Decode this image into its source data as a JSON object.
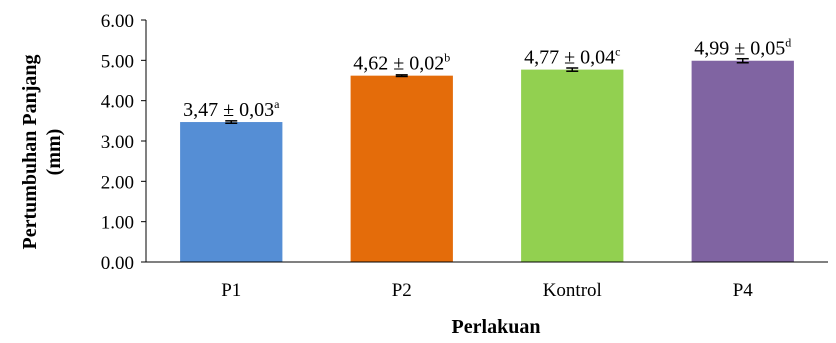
{
  "chart_data": {
    "type": "bar",
    "categories": [
      "P1",
      "P2",
      "Kontrol",
      "P4"
    ],
    "values": [
      3.47,
      4.62,
      4.77,
      4.99
    ],
    "errors": [
      0.03,
      0.02,
      0.04,
      0.05
    ],
    "colors": [
      "#558ED5",
      "#E46C0A",
      "#92D050",
      "#8064A2"
    ],
    "data_labels": [
      {
        "text": "3,47 ± 0,03",
        "sup": "a"
      },
      {
        "text": "4,62 ± 0,02",
        "sup": "b"
      },
      {
        "text": "4,77 ± 0,04",
        "sup": "c"
      },
      {
        "text": "4,99 ± 0,05",
        "sup": "d"
      }
    ],
    "yticks": [
      "0.00",
      "1.00",
      "2.00",
      "3.00",
      "4.00",
      "5.00",
      "6.00"
    ],
    "ytick_values": [
      0,
      1,
      2,
      3,
      4,
      5,
      6
    ],
    "ylim": [
      0,
      6
    ],
    "xlabel": "Perlakuan",
    "ylabel_lines": [
      "Pertumbuhan Panjang",
      "(mm)"
    ],
    "grid": false,
    "legend": "none"
  }
}
